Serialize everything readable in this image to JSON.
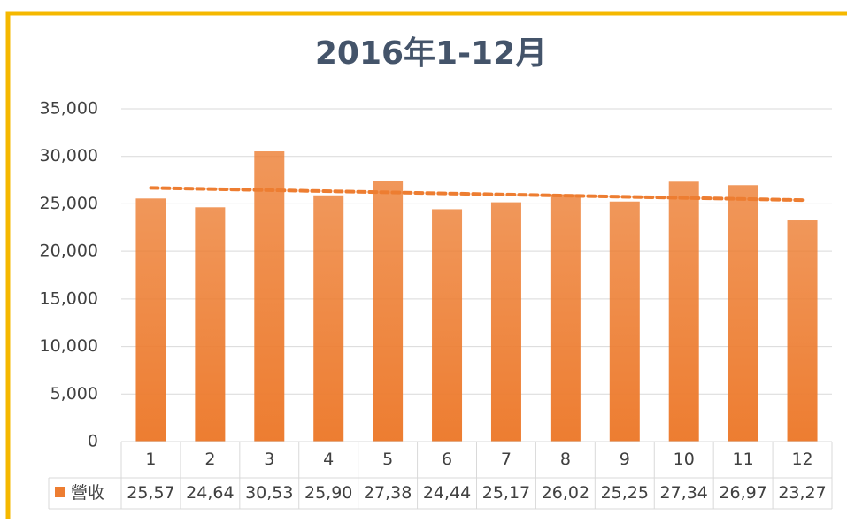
{
  "chart_data": {
    "type": "bar",
    "title": "2016年1-12月",
    "categories": [
      "1",
      "2",
      "3",
      "4",
      "5",
      "6",
      "7",
      "8",
      "9",
      "10",
      "11",
      "12"
    ],
    "series": [
      {
        "name": "營收",
        "color": "#ed7d31",
        "values": [
          25570,
          24640,
          30530,
          25900,
          27380,
          24440,
          25170,
          26020,
          25250,
          27340,
          26970,
          23270
        ],
        "value_labels": [
          "25,57",
          "24,64",
          "30,53",
          "25,90",
          "27,38",
          "24,44",
          "25,17",
          "26,02",
          "25,25",
          "27,34",
          "26,97",
          "23,27"
        ]
      }
    ],
    "ylim": [
      0,
      35000
    ],
    "yticks": [
      0,
      {
        "value": 5000,
        "label": "5,000"
      },
      {
        "value": 10000,
        "label": "10,000"
      },
      {
        "value": 15000,
        "label": "15,000"
      },
      {
        "value": 20000,
        "label": "20,000"
      },
      {
        "value": 25000,
        "label": "25,000"
      },
      {
        "value": 30000,
        "label": "30,000"
      },
      {
        "value": 35000,
        "label": "35,000"
      }
    ],
    "grid": true,
    "trendline": "linear",
    "data_table": true
  }
}
